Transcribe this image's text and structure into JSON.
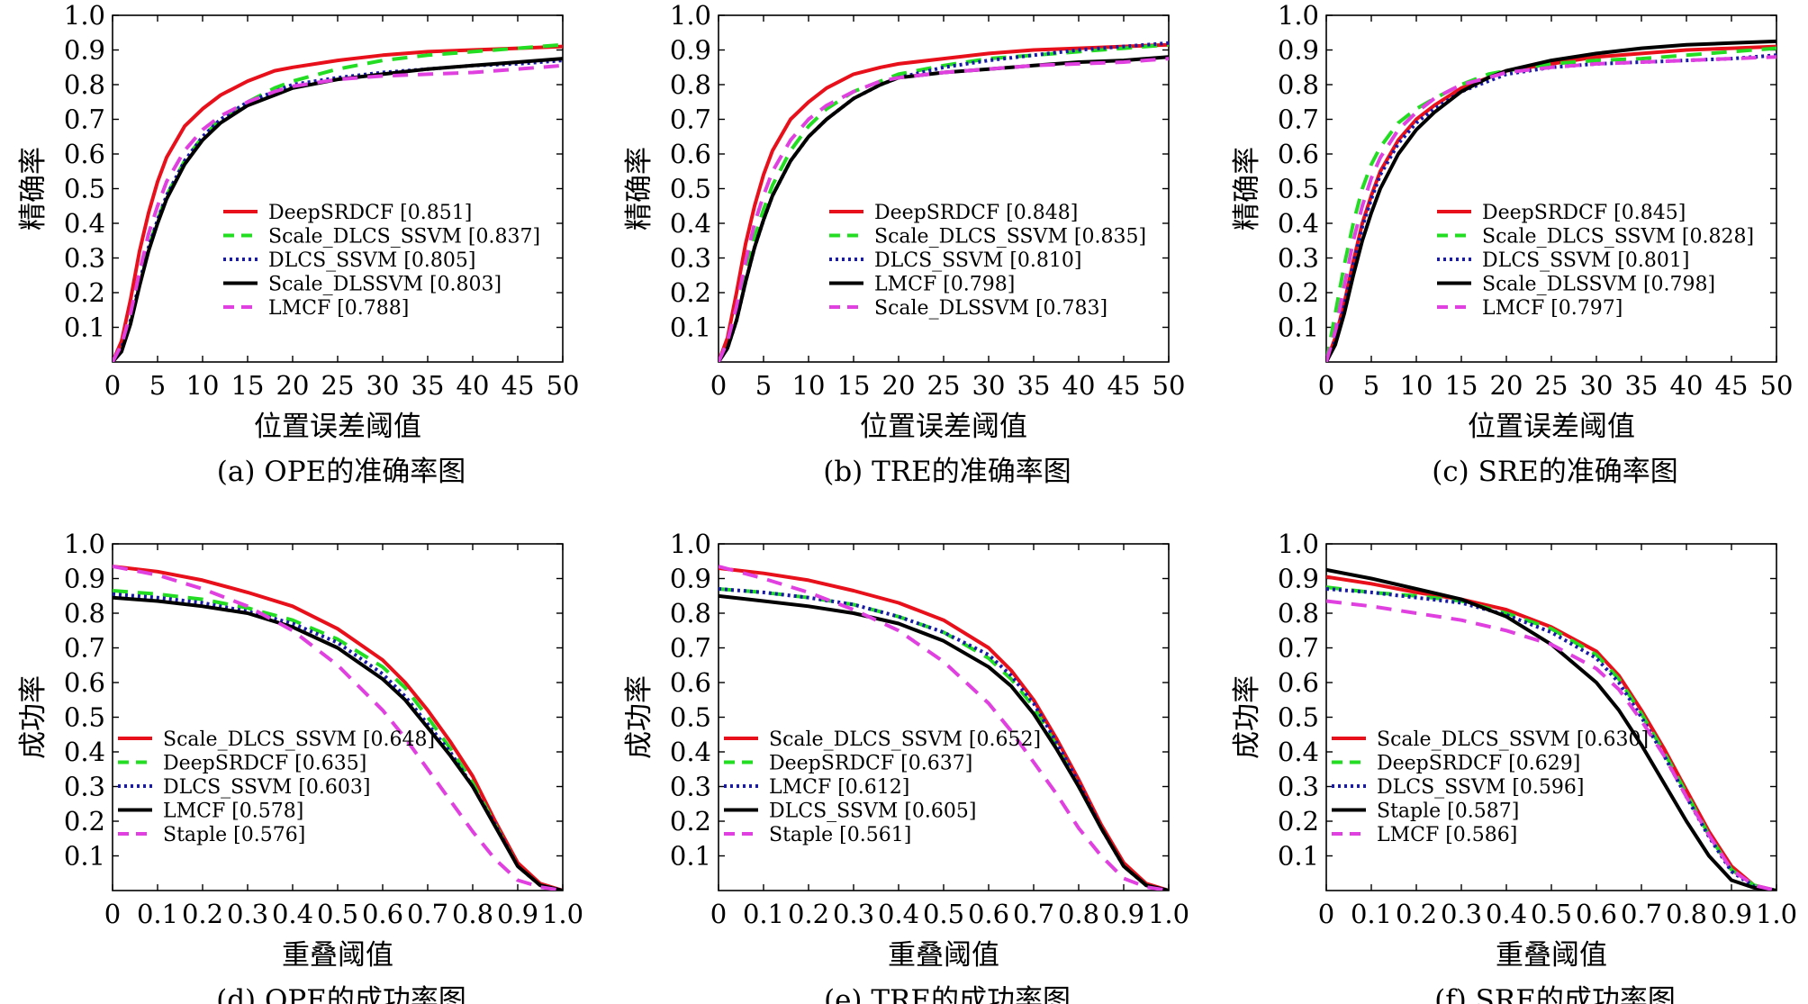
{
  "figure": {
    "styles": {
      "red": {
        "color": "#e8101a",
        "dash": "",
        "width": 4
      },
      "green": {
        "color": "#22dd22",
        "dash": "17 11",
        "width": 4
      },
      "blue": {
        "color": "#1a1aa8",
        "dash": "3 4",
        "width": 4
      },
      "black": {
        "color": "#000000",
        "dash": "",
        "width": 4
      },
      "magenta": {
        "color": "#e040e0",
        "dash": "17 11",
        "width": 4
      }
    }
  },
  "chart_data": [
    {
      "type": "line",
      "caption": "(a) OPE的准确率图",
      "xlabel": "位置误差阈值",
      "ylabel": "精确率",
      "xlim": [
        0,
        50
      ],
      "ylim": [
        0,
        1
      ],
      "xticks": [
        "0",
        "5",
        "10",
        "15",
        "20",
        "25",
        "30",
        "35",
        "40",
        "45",
        "50"
      ],
      "yticks": [
        "0.1",
        "0.2",
        "0.3",
        "0.4",
        "0.5",
        "0.6",
        "0.7",
        "0.8",
        "0.9",
        "1.0"
      ],
      "x": [
        0,
        1,
        2,
        3,
        4,
        5,
        6,
        8,
        10,
        12,
        15,
        18,
        20,
        25,
        30,
        35,
        40,
        45,
        50
      ],
      "legend_position": "center-right",
      "series": [
        {
          "name": "DeepSRDCF [0.851]",
          "style": "red",
          "values": [
            0,
            0.06,
            0.18,
            0.32,
            0.43,
            0.52,
            0.59,
            0.68,
            0.73,
            0.77,
            0.81,
            0.84,
            0.85,
            0.87,
            0.885,
            0.895,
            0.9,
            0.905,
            0.91
          ]
        },
        {
          "name": "Scale_DLCS_SSVM [0.837]",
          "style": "green",
          "values": [
            0,
            0.04,
            0.12,
            0.23,
            0.33,
            0.41,
            0.48,
            0.58,
            0.65,
            0.7,
            0.75,
            0.79,
            0.81,
            0.845,
            0.87,
            0.885,
            0.895,
            0.905,
            0.915
          ]
        },
        {
          "name": "DLCS_SSVM [0.805]",
          "style": "blue",
          "values": [
            0,
            0.04,
            0.12,
            0.23,
            0.33,
            0.41,
            0.48,
            0.58,
            0.65,
            0.7,
            0.75,
            0.78,
            0.8,
            0.82,
            0.835,
            0.845,
            0.855,
            0.86,
            0.87
          ]
        },
        {
          "name": "Scale_DLSSVM [0.803]",
          "style": "black",
          "values": [
            0,
            0.03,
            0.11,
            0.22,
            0.32,
            0.4,
            0.47,
            0.57,
            0.64,
            0.69,
            0.74,
            0.77,
            0.79,
            0.815,
            0.83,
            0.845,
            0.855,
            0.865,
            0.875
          ]
        },
        {
          "name": "LMCF [0.788]",
          "style": "magenta",
          "values": [
            0,
            0.05,
            0.14,
            0.26,
            0.37,
            0.45,
            0.52,
            0.61,
            0.67,
            0.71,
            0.75,
            0.78,
            0.795,
            0.815,
            0.825,
            0.83,
            0.835,
            0.845,
            0.855
          ]
        }
      ]
    },
    {
      "type": "line",
      "caption": "(b) TRE的准确率图",
      "xlabel": "位置误差阈值",
      "ylabel": "精确率",
      "xlim": [
        0,
        50
      ],
      "ylim": [
        0,
        1
      ],
      "xticks": [
        "0",
        "5",
        "10",
        "15",
        "20",
        "25",
        "30",
        "35",
        "40",
        "45",
        "50"
      ],
      "yticks": [
        "0.1",
        "0.2",
        "0.3",
        "0.4",
        "0.5",
        "0.6",
        "0.7",
        "0.8",
        "0.9",
        "1.0"
      ],
      "x": [
        0,
        1,
        2,
        3,
        4,
        5,
        6,
        8,
        10,
        12,
        15,
        18,
        20,
        25,
        30,
        35,
        40,
        45,
        50
      ],
      "legend_position": "center-right",
      "series": [
        {
          "name": "DeepSRDCF [0.848]",
          "style": "red",
          "values": [
            0,
            0.07,
            0.2,
            0.34,
            0.45,
            0.54,
            0.61,
            0.7,
            0.75,
            0.79,
            0.83,
            0.85,
            0.86,
            0.875,
            0.89,
            0.9,
            0.905,
            0.91,
            0.915
          ]
        },
        {
          "name": "Scale_DLCS_SSVM [0.835]",
          "style": "green",
          "values": [
            0,
            0.05,
            0.14,
            0.26,
            0.36,
            0.44,
            0.51,
            0.61,
            0.68,
            0.73,
            0.78,
            0.81,
            0.83,
            0.855,
            0.875,
            0.885,
            0.895,
            0.905,
            0.915
          ]
        },
        {
          "name": "DLCS_SSVM [0.810]",
          "style": "blue",
          "values": [
            0,
            0.04,
            0.12,
            0.23,
            0.33,
            0.41,
            0.48,
            0.58,
            0.65,
            0.7,
            0.76,
            0.8,
            0.82,
            0.85,
            0.87,
            0.885,
            0.9,
            0.91,
            0.92
          ]
        },
        {
          "name": "LMCF [0.798]",
          "style": "black",
          "values": [
            0,
            0.04,
            0.12,
            0.23,
            0.33,
            0.41,
            0.48,
            0.58,
            0.65,
            0.7,
            0.76,
            0.8,
            0.82,
            0.835,
            0.845,
            0.855,
            0.865,
            0.87,
            0.88
          ]
        },
        {
          "name": "Scale_DLSSVM [0.783]",
          "style": "magenta",
          "values": [
            0,
            0.06,
            0.16,
            0.29,
            0.4,
            0.48,
            0.55,
            0.64,
            0.7,
            0.74,
            0.78,
            0.81,
            0.82,
            0.835,
            0.845,
            0.855,
            0.86,
            0.865,
            0.875
          ]
        }
      ]
    },
    {
      "type": "line",
      "caption": "(c) SRE的准确率图",
      "xlabel": "位置误差阈值",
      "ylabel": "精确率",
      "xlim": [
        0,
        50
      ],
      "ylim": [
        0,
        1
      ],
      "xticks": [
        "0",
        "5",
        "10",
        "15",
        "20",
        "25",
        "30",
        "35",
        "40",
        "45",
        "50"
      ],
      "yticks": [
        "0.1",
        "0.2",
        "0.3",
        "0.4",
        "0.5",
        "0.6",
        "0.7",
        "0.8",
        "0.9",
        "1.0"
      ],
      "x": [
        0,
        1,
        2,
        3,
        4,
        5,
        6,
        8,
        10,
        12,
        15,
        18,
        20,
        25,
        30,
        35,
        40,
        45,
        50
      ],
      "legend_position": "center-right",
      "series": [
        {
          "name": "DeepSRDCF [0.845]",
          "style": "red",
          "values": [
            0,
            0.07,
            0.17,
            0.29,
            0.4,
            0.48,
            0.55,
            0.64,
            0.7,
            0.74,
            0.79,
            0.82,
            0.84,
            0.86,
            0.88,
            0.89,
            0.9,
            0.905,
            0.91
          ]
        },
        {
          "name": "Scale_DLCS_SSVM [0.828]",
          "style": "green",
          "values": [
            0,
            0.14,
            0.28,
            0.4,
            0.5,
            0.57,
            0.62,
            0.69,
            0.73,
            0.76,
            0.8,
            0.83,
            0.84,
            0.86,
            0.87,
            0.875,
            0.885,
            0.895,
            0.905
          ]
        },
        {
          "name": "DLCS_SSVM [0.801]",
          "style": "blue",
          "values": [
            0,
            0.06,
            0.16,
            0.28,
            0.39,
            0.47,
            0.54,
            0.63,
            0.69,
            0.73,
            0.78,
            0.81,
            0.83,
            0.85,
            0.86,
            0.865,
            0.87,
            0.875,
            0.885
          ]
        },
        {
          "name": "Scale_DLSSVM [0.798]",
          "style": "black",
          "values": [
            0,
            0.05,
            0.14,
            0.25,
            0.35,
            0.43,
            0.5,
            0.6,
            0.67,
            0.72,
            0.78,
            0.82,
            0.84,
            0.87,
            0.89,
            0.905,
            0.915,
            0.92,
            0.925
          ]
        },
        {
          "name": "LMCF [0.797]",
          "style": "magenta",
          "values": [
            0,
            0.09,
            0.22,
            0.35,
            0.45,
            0.53,
            0.59,
            0.67,
            0.72,
            0.76,
            0.8,
            0.82,
            0.835,
            0.85,
            0.86,
            0.865,
            0.87,
            0.875,
            0.88
          ]
        }
      ]
    },
    {
      "type": "line",
      "caption": "(d) OPE的成功率图",
      "xlabel": "重叠阈值",
      "ylabel": "成功率",
      "xlim": [
        0,
        1
      ],
      "ylim": [
        0,
        1
      ],
      "xticks": [
        "0",
        "0.1",
        "0.2",
        "0.3",
        "0.4",
        "0.5",
        "0.6",
        "0.7",
        "0.8",
        "0.9",
        "1.0"
      ],
      "yticks": [
        "0.1",
        "0.2",
        "0.3",
        "0.4",
        "0.5",
        "0.6",
        "0.7",
        "0.8",
        "0.9",
        "1.0"
      ],
      "x": [
        0,
        0.1,
        0.2,
        0.3,
        0.4,
        0.5,
        0.6,
        0.65,
        0.7,
        0.75,
        0.8,
        0.85,
        0.9,
        0.95,
        1.0
      ],
      "legend_position": "lower-left",
      "series": [
        {
          "name": "Scale_DLCS_SSVM [0.648]",
          "style": "red",
          "values": [
            0.935,
            0.92,
            0.895,
            0.86,
            0.82,
            0.755,
            0.665,
            0.6,
            0.52,
            0.43,
            0.33,
            0.2,
            0.08,
            0.02,
            0
          ]
        },
        {
          "name": "DeepSRDCF [0.635]",
          "style": "green",
          "values": [
            0.865,
            0.855,
            0.84,
            0.815,
            0.78,
            0.725,
            0.645,
            0.585,
            0.5,
            0.41,
            0.31,
            0.19,
            0.07,
            0.015,
            0
          ]
        },
        {
          "name": "DLCS_SSVM [0.603]",
          "style": "blue",
          "values": [
            0.855,
            0.845,
            0.83,
            0.805,
            0.77,
            0.715,
            0.625,
            0.56,
            0.48,
            0.4,
            0.3,
            0.19,
            0.07,
            0.015,
            0
          ]
        },
        {
          "name": "LMCF [0.578]",
          "style": "black",
          "values": [
            0.845,
            0.835,
            0.82,
            0.8,
            0.76,
            0.7,
            0.61,
            0.55,
            0.47,
            0.39,
            0.3,
            0.185,
            0.07,
            0.015,
            0
          ]
        },
        {
          "name": "Staple [0.576]",
          "style": "magenta",
          "values": [
            0.935,
            0.91,
            0.87,
            0.82,
            0.75,
            0.65,
            0.52,
            0.44,
            0.35,
            0.26,
            0.17,
            0.09,
            0.03,
            0.01,
            0
          ]
        }
      ]
    },
    {
      "type": "line",
      "caption": "(e) TRE的成功率图",
      "xlabel": "重叠阈值",
      "ylabel": "成功率",
      "xlim": [
        0,
        1
      ],
      "ylim": [
        0,
        1
      ],
      "xticks": [
        "0",
        "0.1",
        "0.2",
        "0.3",
        "0.4",
        "0.5",
        "0.6",
        "0.7",
        "0.8",
        "0.9",
        "1.0"
      ],
      "yticks": [
        "0.1",
        "0.2",
        "0.3",
        "0.4",
        "0.5",
        "0.6",
        "0.7",
        "0.8",
        "0.9",
        "1.0"
      ],
      "x": [
        0,
        0.1,
        0.2,
        0.3,
        0.4,
        0.5,
        0.6,
        0.65,
        0.7,
        0.75,
        0.8,
        0.85,
        0.9,
        0.95,
        1.0
      ],
      "legend_position": "lower-left",
      "series": [
        {
          "name": "Scale_DLCS_SSVM [0.652]",
          "style": "red",
          "values": [
            0.93,
            0.915,
            0.895,
            0.865,
            0.83,
            0.78,
            0.7,
            0.635,
            0.55,
            0.44,
            0.32,
            0.19,
            0.08,
            0.02,
            0
          ]
        },
        {
          "name": "DeepSRDCF [0.637]",
          "style": "green",
          "values": [
            0.87,
            0.86,
            0.845,
            0.825,
            0.79,
            0.745,
            0.67,
            0.61,
            0.53,
            0.42,
            0.3,
            0.18,
            0.07,
            0.015,
            0
          ]
        },
        {
          "name": "LMCF [0.612]",
          "style": "blue",
          "values": [
            0.87,
            0.86,
            0.845,
            0.825,
            0.79,
            0.745,
            0.68,
            0.62,
            0.54,
            0.43,
            0.31,
            0.18,
            0.07,
            0.015,
            0
          ]
        },
        {
          "name": "DLCS_SSVM [0.605]",
          "style": "black",
          "values": [
            0.85,
            0.835,
            0.82,
            0.8,
            0.77,
            0.72,
            0.645,
            0.59,
            0.51,
            0.41,
            0.3,
            0.18,
            0.07,
            0.015,
            0
          ]
        },
        {
          "name": "Staple [0.561]",
          "style": "magenta",
          "values": [
            0.935,
            0.9,
            0.86,
            0.81,
            0.75,
            0.66,
            0.54,
            0.46,
            0.37,
            0.28,
            0.18,
            0.1,
            0.035,
            0.01,
            0
          ]
        }
      ]
    },
    {
      "type": "line",
      "caption": "(f) SRE的成功率图",
      "xlabel": "重叠阈值",
      "ylabel": "成功率",
      "xlim": [
        0,
        1
      ],
      "ylim": [
        0,
        1
      ],
      "xticks": [
        "0",
        "0.1",
        "0.2",
        "0.3",
        "0.4",
        "0.5",
        "0.6",
        "0.7",
        "0.8",
        "0.9",
        "1.0"
      ],
      "yticks": [
        "0.1",
        "0.2",
        "0.3",
        "0.4",
        "0.5",
        "0.6",
        "0.7",
        "0.8",
        "0.9",
        "1.0"
      ],
      "x": [
        0,
        0.1,
        0.2,
        0.3,
        0.4,
        0.5,
        0.6,
        0.65,
        0.7,
        0.75,
        0.8,
        0.85,
        0.9,
        0.95,
        1.0
      ],
      "legend_position": "lower-left",
      "series": [
        {
          "name": "Scale_DLCS_SSVM [0.630]",
          "style": "red",
          "values": [
            0.905,
            0.885,
            0.86,
            0.84,
            0.81,
            0.76,
            0.69,
            0.62,
            0.52,
            0.41,
            0.29,
            0.17,
            0.07,
            0.015,
            0
          ]
        },
        {
          "name": "DeepSRDCF [0.629]",
          "style": "green",
          "values": [
            0.875,
            0.86,
            0.85,
            0.835,
            0.8,
            0.755,
            0.68,
            0.61,
            0.51,
            0.4,
            0.28,
            0.16,
            0.06,
            0.015,
            0
          ]
        },
        {
          "name": "DLCS_SSVM [0.596]",
          "style": "blue",
          "values": [
            0.87,
            0.86,
            0.845,
            0.83,
            0.795,
            0.745,
            0.67,
            0.6,
            0.5,
            0.39,
            0.27,
            0.155,
            0.055,
            0.012,
            0
          ]
        },
        {
          "name": "Staple [0.587]",
          "style": "black",
          "values": [
            0.925,
            0.9,
            0.87,
            0.84,
            0.79,
            0.71,
            0.6,
            0.52,
            0.42,
            0.31,
            0.2,
            0.1,
            0.03,
            0.008,
            0
          ]
        },
        {
          "name": "LMCF [0.586]",
          "style": "magenta",
          "values": [
            0.835,
            0.82,
            0.8,
            0.78,
            0.75,
            0.71,
            0.64,
            0.58,
            0.49,
            0.39,
            0.27,
            0.16,
            0.06,
            0.015,
            0
          ]
        }
      ]
    }
  ]
}
